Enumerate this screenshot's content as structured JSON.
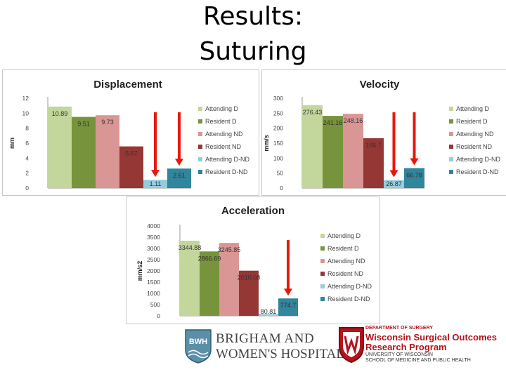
{
  "slide": {
    "title_line1": "Results:",
    "title_line2": "Suturing"
  },
  "colors": {
    "Attending D": "#c3d69b",
    "Resident D": "#77933c",
    "Attending ND": "#d99694",
    "Resident ND": "#953735",
    "Attending D-ND": "#93cddd",
    "Resident D-ND": "#31859c",
    "arrow": "#e8170c"
  },
  "chart_data": [
    {
      "type": "bar",
      "title": "Displacement",
      "ylabel": "mm",
      "ylim": [
        0,
        12
      ],
      "yticks": [
        0,
        2,
        4,
        6,
        8,
        10,
        12
      ],
      "categories": [
        "Attending D",
        "Resident D",
        "Attending ND",
        "Resident ND",
        "Attending D-ND",
        "Resident D-ND"
      ],
      "legend": [
        "Attending D",
        "Resident D",
        "Attending ND",
        "Resident ND",
        "Attending D-ND",
        "Resident D-ND"
      ],
      "values": [
        10.89,
        9.51,
        9.73,
        5.57,
        1.11,
        2.61
      ],
      "labels": [
        "10.89",
        "9.51",
        "9.73",
        "5.57",
        "1.11",
        "2.61"
      ],
      "legend_position": "right",
      "grid": false,
      "arrows_over": [
        "Attending D-ND",
        "Resident D-ND"
      ]
    },
    {
      "type": "bar",
      "title": "Velocity",
      "ylabel": "mm/s",
      "ylim": [
        0,
        300
      ],
      "yticks": [
        0,
        50,
        100,
        150,
        200,
        250,
        300
      ],
      "categories": [
        "Attending D",
        "Resident D",
        "Attending ND",
        "Resident ND",
        "Attending D-ND",
        "Resident D-ND"
      ],
      "legend": [
        "Attending D",
        "Resident D",
        "Attending ND",
        "Resident ND",
        "Attending D-ND",
        "Resident D-ND"
      ],
      "values": [
        276.43,
        241.16,
        248.16,
        166.7,
        26.87,
        66.78
      ],
      "labels": [
        "276.43",
        "241.16",
        "248.16",
        "166.7",
        "26.87",
        "66.78"
      ],
      "legend_position": "right",
      "grid": false,
      "arrows_over": [
        "Attending D-ND",
        "Resident D-ND"
      ]
    },
    {
      "type": "bar",
      "title": "Acceleration",
      "ylabel": "mm/s2",
      "ylim": [
        0,
        4000
      ],
      "yticks": [
        0,
        500,
        1000,
        1500,
        2000,
        2500,
        3000,
        3500,
        4000
      ],
      "categories": [
        "Attending D",
        "Resident D",
        "Attending ND",
        "Resident ND",
        "Attending D-ND",
        "Resident D-ND"
      ],
      "legend": [
        "Attending D",
        "Resident D",
        "Attending ND",
        "Resident ND",
        "Attending D-ND",
        "Resident D-ND"
      ],
      "values": [
        3344.88,
        2866.69,
        3245.85,
        2010.08,
        80.81,
        774.7
      ],
      "labels": [
        "3344.88",
        "2866.69",
        "3245.85",
        "2010.08",
        "80.81",
        "774.7"
      ],
      "legend_position": "right",
      "grid": false,
      "arrows_over": [
        "Resident D-ND"
      ]
    }
  ],
  "logos": {
    "bwh_mark": "BWH",
    "bwh_line1": "BRIGHAM AND",
    "bwh_line2": "WOMEN'S HOSPITAL",
    "wisc_dept": "DEPARTMENT OF SURGERY",
    "wisc_line1": "Wisconsin Surgical Outcomes",
    "wisc_line2": "Research Program",
    "wisc_line3": "UNIVERSITY OF WISCONSIN",
    "wisc_line4": "SCHOOL OF MEDICINE AND PUBLIC HEALTH"
  }
}
